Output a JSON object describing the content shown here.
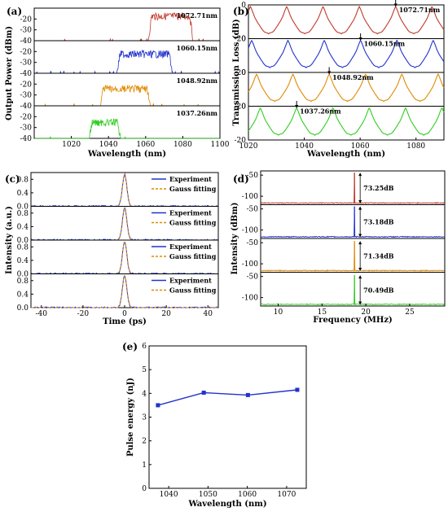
{
  "chart_data": [
    {
      "id": "a",
      "type": "line",
      "panel_label": "(a)",
      "xlabel": "Wavelength (nm)",
      "ylabel": "Output Power (dBm)",
      "xlim": [
        1000,
        1100
      ],
      "xticks": [
        1020,
        1040,
        1060,
        1080,
        1100
      ],
      "ylim": [
        -40,
        -10
      ],
      "yticks": [
        -20,
        -30,
        -40
      ],
      "series": [
        {
          "name": "1072.71nm",
          "color": "#c0392b",
          "band": [
            1061,
            1086
          ],
          "peak": -14,
          "floor": -42
        },
        {
          "name": "1060.15nm",
          "color": "#2233cc",
          "band": [
            1044,
            1075
          ],
          "peak": -19,
          "floor": -42
        },
        {
          "name": "1048.92nm",
          "color": "#e08a00",
          "band": [
            1035,
            1063
          ],
          "peak": -21,
          "floor": -42
        },
        {
          "name": "1037.26nm",
          "color": "#33cc22",
          "band": [
            1029,
            1047
          ],
          "peak": -22,
          "floor": -42
        }
      ]
    },
    {
      "id": "b",
      "type": "line",
      "panel_label": "(b)",
      "xlabel": "Wavelength (nm)",
      "ylabel": "Transmission Loss (dB)",
      "xlim": [
        1020,
        1090
      ],
      "xticks": [
        1020,
        1040,
        1060,
        1080
      ],
      "ylim": [
        -20,
        0
      ],
      "yticks": [
        0,
        -20
      ],
      "series": [
        {
          "name": "1072.71nm",
          "color": "#c0392b",
          "peak": 1072.71
        },
        {
          "name": "1060.15nm",
          "color": "#2233cc",
          "peak": 1060.15
        },
        {
          "name": "1048.92nm",
          "color": "#e08a00",
          "peak": 1048.92
        },
        {
          "name": "1037.26nm",
          "color": "#33cc22",
          "peak": 1037.26
        }
      ]
    },
    {
      "id": "c",
      "type": "line",
      "panel_label": "(c)",
      "xlabel": "Time (ps)",
      "ylabel": "Intensity (a.u.)",
      "xlim": [
        -45,
        45
      ],
      "xticks": [
        -40,
        -20,
        0,
        20,
        40
      ],
      "ylim": [
        0,
        1
      ],
      "yticks": [
        0.0,
        0.4,
        0.8
      ],
      "series": [
        {
          "name": "Experiment",
          "color": "#2233cc"
        },
        {
          "name": "Gauss fitting",
          "color": "#e08a00"
        }
      ],
      "pulse_fwhm_ps": 2.5
    },
    {
      "id": "d",
      "type": "line",
      "panel_label": "(d)",
      "xlabel": "Frequency (MHz)",
      "ylabel": "Intensity (dBm)",
      "xlim": [
        8,
        29
      ],
      "xticks": [
        10,
        15,
        20,
        25
      ],
      "ylim": [
        -120,
        -40
      ],
      "yticks": [
        -50,
        -100
      ],
      "peak_frequency_mhz": 18.7,
      "series": [
        {
          "color": "#c0392b",
          "snr_label": "73.25dB",
          "peak": -44,
          "floor": -117
        },
        {
          "color": "#2233cc",
          "snr_label": "73.18dB",
          "peak": -44,
          "floor": -117
        },
        {
          "color": "#e08a00",
          "snr_label": "71.34dB",
          "peak": -46,
          "floor": -117
        },
        {
          "color": "#33cc22",
          "snr_label": "70.49dB",
          "peak": -47,
          "floor": -117
        }
      ]
    },
    {
      "id": "e",
      "type": "line",
      "panel_label": "(e)",
      "xlabel": "Wavelength (nm)",
      "ylabel": "Pulse energy (nJ)",
      "xlim": [
        1035,
        1075
      ],
      "xticks": [
        1040,
        1050,
        1060,
        1070
      ],
      "ylim": [
        0,
        6
      ],
      "yticks": [
        0,
        1,
        2,
        3,
        4,
        5,
        6
      ],
      "x": [
        1037.26,
        1048.92,
        1060.15,
        1072.71
      ],
      "y": [
        3.5,
        4.03,
        3.93,
        4.15
      ],
      "color": "#2233cc"
    }
  ]
}
